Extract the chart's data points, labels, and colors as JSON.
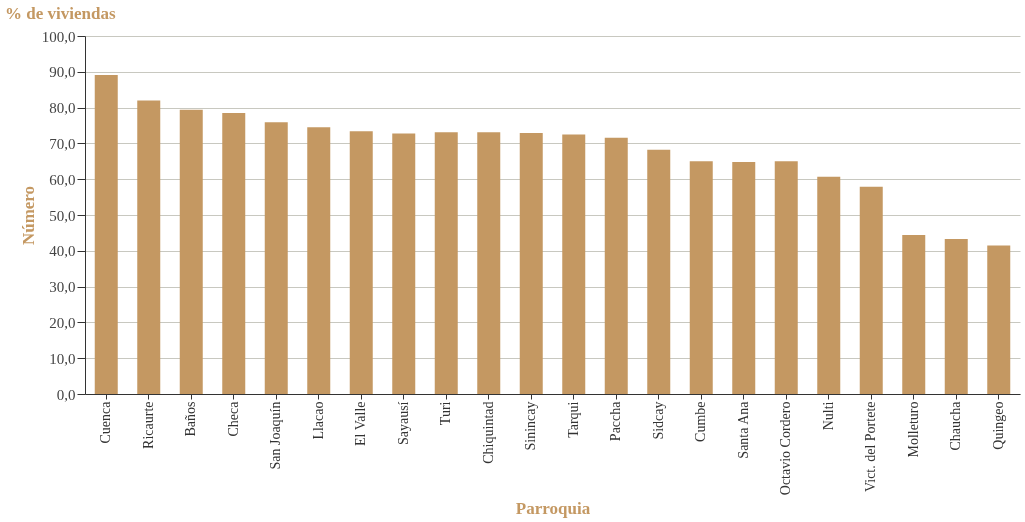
{
  "chart_data": {
    "type": "bar",
    "title": "% de viviendas",
    "xlabel": "Parroquia",
    "ylabel": "Número",
    "categories": [
      "Cuenca",
      "Ricaurte",
      "Baños",
      "Checa",
      "San Joaquín",
      "Llacao",
      "El Valle",
      "Sayausí",
      "Turi",
      "Chiquintad",
      "Sinincay",
      "Tarqui",
      "Paccha",
      "Sidcay",
      "Cumbe",
      "Santa Ana",
      "Octavio Cordero",
      "Nulti",
      "Vict. del Portete",
      "Molleturo",
      "Chaucha",
      "Quingeo"
    ],
    "values": [
      89.1,
      82.0,
      79.4,
      78.5,
      75.9,
      74.5,
      73.4,
      72.8,
      73.1,
      73.1,
      72.9,
      72.5,
      71.6,
      68.2,
      65.0,
      64.8,
      65.0,
      60.7,
      57.9,
      44.4,
      43.3,
      41.5
    ],
    "color": "#c49862",
    "ylim": [
      0,
      100
    ],
    "yticks": [
      {
        "value": 0,
        "label": "0,0"
      },
      {
        "value": 10,
        "label": "10,0"
      },
      {
        "value": 20,
        "label": "20,0"
      },
      {
        "value": 30,
        "label": "30,0"
      },
      {
        "value": 40,
        "label": "40,0"
      },
      {
        "value": 50,
        "label": "50,0"
      },
      {
        "value": 60,
        "label": "60,0"
      },
      {
        "value": 70,
        "label": "70,0"
      },
      {
        "value": 80,
        "label": "80,0"
      },
      {
        "value": 90,
        "label": "90,0"
      },
      {
        "value": 100,
        "label": "100,0"
      }
    ],
    "grid": "y"
  }
}
